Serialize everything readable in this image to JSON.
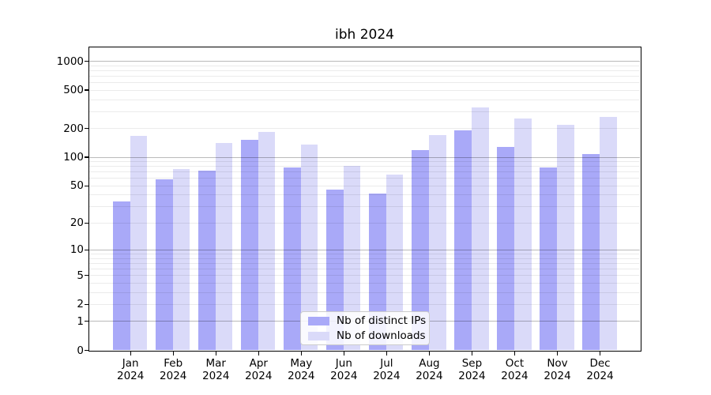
{
  "chart_data": {
    "type": "bar",
    "title": "ibh 2024",
    "xlabel": "",
    "ylabel": "",
    "yscale": "log1p",
    "ylim": [
      0,
      1380
    ],
    "grid": true,
    "legend_position": "lower center",
    "categories": [
      "Jan 2024",
      "Feb 2024",
      "Mar 2024",
      "Apr 2024",
      "May 2024",
      "Jun 2024",
      "Jul 2024",
      "Aug 2024",
      "Sep 2024",
      "Oct 2024",
      "Nov 2024",
      "Dec 2024"
    ],
    "series": [
      {
        "name": "Nb of distinct IPs",
        "color": "#a9a9f8",
        "values": [
          34,
          58,
          72,
          150,
          78,
          45,
          41,
          117,
          190,
          127,
          78,
          106
        ]
      },
      {
        "name": "Nb of downloads",
        "color": "#dadaf9",
        "values": [
          165,
          75,
          140,
          183,
          135,
          80,
          65,
          170,
          330,
          250,
          215,
          260
        ]
      }
    ],
    "yticks": [
      0,
      1,
      2,
      5,
      10,
      20,
      50,
      100,
      200,
      500,
      1000
    ],
    "grid_major_ticks": [
      1,
      10,
      100,
      1000
    ],
    "colors": {
      "spine": "#000000",
      "legend_border": "#cccccc",
      "background": "#ffffff"
    }
  }
}
